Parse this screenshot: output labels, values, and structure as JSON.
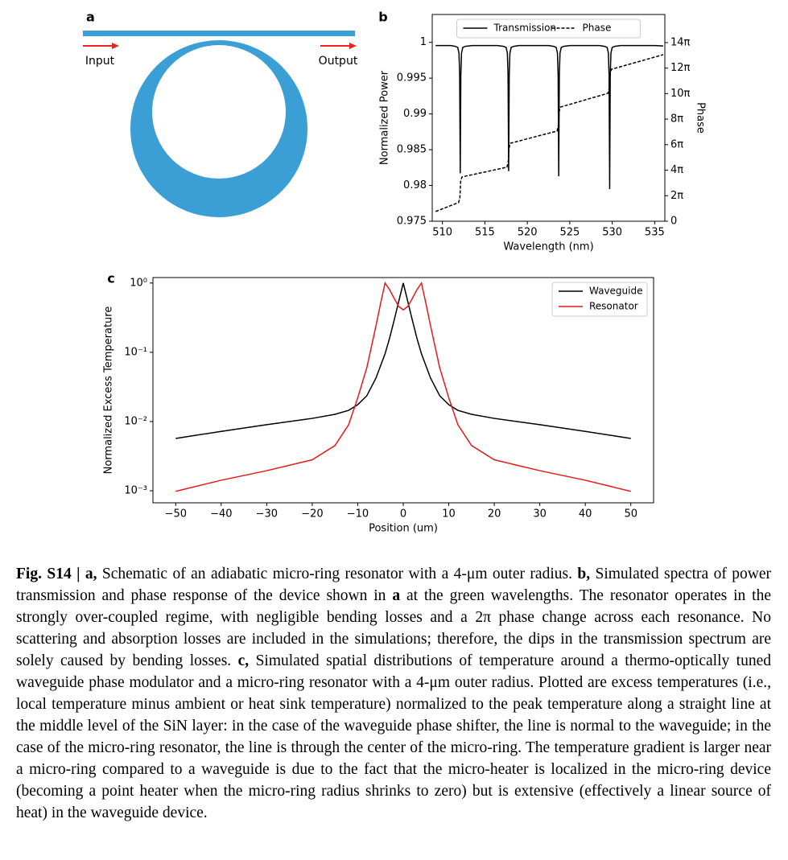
{
  "panel_a": {
    "label": "a",
    "input": "Input",
    "output": "Output"
  },
  "chart_data": [
    {
      "type": "line",
      "panel_label": "b",
      "xlabel": "Wavelength (nm)",
      "ylabel": "Normalized Power",
      "y2label": "Phase",
      "xlim": [
        508.8,
        536.2
      ],
      "xticks": [
        510,
        515,
        520,
        525,
        530,
        535
      ],
      "ylim": [
        0.975,
        1.0039
      ],
      "yticks": [
        0.975,
        0.98,
        0.985,
        0.99,
        0.995,
        1
      ],
      "y2lim": [
        0,
        50.9
      ],
      "y2ticks": [
        0,
        {
          "value": 6.2832,
          "label": "2π"
        },
        {
          "value": 12.5664,
          "label": "4π"
        },
        {
          "value": 18.8496,
          "label": "6π"
        },
        {
          "value": 25.1327,
          "label": "8π"
        },
        {
          "value": 31.4159,
          "label": "10π"
        },
        {
          "value": 37.6991,
          "label": "12π"
        },
        {
          "value": 43.9823,
          "label": "14π"
        }
      ],
      "legend": "upper center",
      "legend_columns": 2,
      "series": [
        {
          "name": "Transmission",
          "color": "#000000",
          "style": "solid",
          "x": [
            509.2,
            510,
            511,
            511.5,
            511.8,
            511.95,
            512.03,
            512.1,
            512.17,
            512.25,
            512.4,
            512.7,
            513.5,
            515,
            516.5,
            517.2,
            517.5,
            517.65,
            517.73,
            517.8,
            517.87,
            517.95,
            518.1,
            518.4,
            519,
            521,
            522.5,
            523.1,
            523.4,
            523.55,
            523.63,
            523.7,
            523.77,
            523.85,
            524,
            524.3,
            525,
            527,
            528.5,
            529.1,
            529.4,
            529.55,
            529.63,
            529.7,
            529.77,
            529.85,
            530,
            530.3,
            531,
            533,
            535,
            536
          ],
          "values": [
            0.99955,
            0.99955,
            0.99955,
            0.99945,
            0.9993,
            0.9985,
            0.9955,
            0.9817,
            0.9955,
            0.9985,
            0.9993,
            0.99945,
            0.99955,
            0.99955,
            0.99955,
            0.99945,
            0.9993,
            0.9985,
            0.9955,
            0.982,
            0.9955,
            0.9985,
            0.9993,
            0.99945,
            0.99955,
            0.99955,
            0.99955,
            0.99945,
            0.9993,
            0.9985,
            0.9955,
            0.9813,
            0.9955,
            0.9985,
            0.9993,
            0.99945,
            0.99955,
            0.99955,
            0.99955,
            0.99945,
            0.9993,
            0.9985,
            0.9955,
            0.9795,
            0.9955,
            0.9985,
            0.9993,
            0.99945,
            0.99955,
            0.99955,
            0.99955,
            0.9995
          ]
        },
        {
          "name": "Phase",
          "color": "#000000",
          "style": "dashed",
          "axis": "y2",
          "x": [
            509.2,
            511.9,
            512.05,
            512.15,
            512.3,
            517.6,
            517.75,
            517.85,
            518.0,
            523.5,
            523.65,
            523.75,
            523.9,
            529.5,
            529.65,
            529.75,
            529.9,
            536
          ],
          "values": [
            2.4,
            4.6,
            5.6,
            9.8,
            10.9,
            13.3,
            14.6,
            18.0,
            19.2,
            22.2,
            23.5,
            27.0,
            28.1,
            31.5,
            32.8,
            36.2,
            37.4,
            41.0
          ]
        }
      ]
    },
    {
      "type": "line",
      "panel_label": "c",
      "xlabel": "Position (um)",
      "ylabel": "Normalized Excess Temperature",
      "xlim": [
        -55,
        55
      ],
      "xticks": [
        {
          "value": -50,
          "label": "−50"
        },
        {
          "value": -40,
          "label": "−40"
        },
        {
          "value": -30,
          "label": "−30"
        },
        {
          "value": -20,
          "label": "−20"
        },
        {
          "value": -10,
          "label": "−10"
        },
        0,
        10,
        20,
        30,
        40,
        50
      ],
      "ylim": [
        0.00067,
        1.2
      ],
      "log_y": true,
      "yticks": [
        {
          "value": 0.001,
          "label": "10⁻³"
        },
        {
          "value": 0.01,
          "label": "10⁻²"
        },
        {
          "value": 0.1,
          "label": "10⁻¹"
        },
        {
          "value": 1,
          "label": "10⁰"
        }
      ],
      "legend": "upper right",
      "legend_columns": 1,
      "series": [
        {
          "name": "Waveguide",
          "color": "#000000",
          "style": "solid",
          "x": [
            -50,
            -40,
            -30,
            -20,
            -15,
            -12,
            -10,
            -8,
            -6,
            -4,
            -3,
            -2,
            -1,
            0,
            1,
            2,
            3,
            4,
            6,
            8,
            10,
            12,
            15,
            20,
            30,
            40,
            50
          ],
          "values": [
            0.0057,
            0.0072,
            0.009,
            0.0111,
            0.0127,
            0.0145,
            0.0175,
            0.0236,
            0.0424,
            0.095,
            0.16,
            0.29,
            0.54,
            1,
            0.54,
            0.29,
            0.16,
            0.095,
            0.0424,
            0.0236,
            0.0175,
            0.0145,
            0.0127,
            0.0111,
            0.009,
            0.0072,
            0.0057
          ]
        },
        {
          "name": "Resonator",
          "color": "#e41a1c",
          "style": "solid",
          "x": [
            -50,
            -40,
            -30,
            -20,
            -15,
            -12,
            -10,
            -8,
            -7,
            -6,
            -5,
            -4,
            -3,
            -2,
            -1,
            0,
            1,
            2,
            3,
            4,
            5,
            6,
            7,
            8,
            10,
            12,
            15,
            20,
            30,
            40,
            50
          ],
          "values": [
            0.00098,
            0.00142,
            0.00195,
            0.0028,
            0.0045,
            0.009,
            0.022,
            0.06,
            0.12,
            0.24,
            0.5,
            1,
            0.8,
            0.6,
            0.46,
            0.41,
            0.46,
            0.6,
            0.8,
            1,
            0.5,
            0.24,
            0.12,
            0.06,
            0.022,
            0.009,
            0.0045,
            0.0028,
            0.00195,
            0.00142,
            0.00098
          ]
        }
      ]
    }
  ],
  "caption": {
    "runs": [
      {
        "text": "Fig. S14 | a,",
        "bold": true
      },
      {
        "text": " Schematic of an adiabatic micro-ring resonator with a 4-μm outer radius. ",
        "bold": false
      },
      {
        "text": "b,",
        "bold": true
      },
      {
        "text": " Simulated spectra of power transmission and phase response of the device shown in ",
        "bold": false
      },
      {
        "text": "a",
        "bold": true
      },
      {
        "text": " at the green wavelengths. The resonator operates in the strongly over-coupled regime, with negligible bending losses and a 2π phase change across each resonance. No scattering and absorption losses are included in the simulations; therefore, the dips in the transmission spectrum are solely caused by bending losses. ",
        "bold": false
      },
      {
        "text": "c,",
        "bold": true
      },
      {
        "text": " Simulated spatial distributions of temperature around a thermo-optically tuned waveguide phase modulator and a micro-ring resonator with a 4-μm outer radius. Plotted are excess temperatures (i.e., local temperature minus ambient or heat sink temperature) normalized to the peak temperature along a straight line at the middle level of the SiN layer: in the case of the waveguide phase shifter, the line is normal to the waveguide; in the case of the micro-ring resonator, the line is through the center of the micro-ring. The temperature gradient is larger near a micro-ring compared to a waveguide is due to the fact that the micro-heater is localized in the micro-ring device (becoming a point heater when the micro-ring radius shrinks to zero) but is extensive (effectively a linear source of heat) in the waveguide device.",
        "bold": false
      }
    ]
  }
}
